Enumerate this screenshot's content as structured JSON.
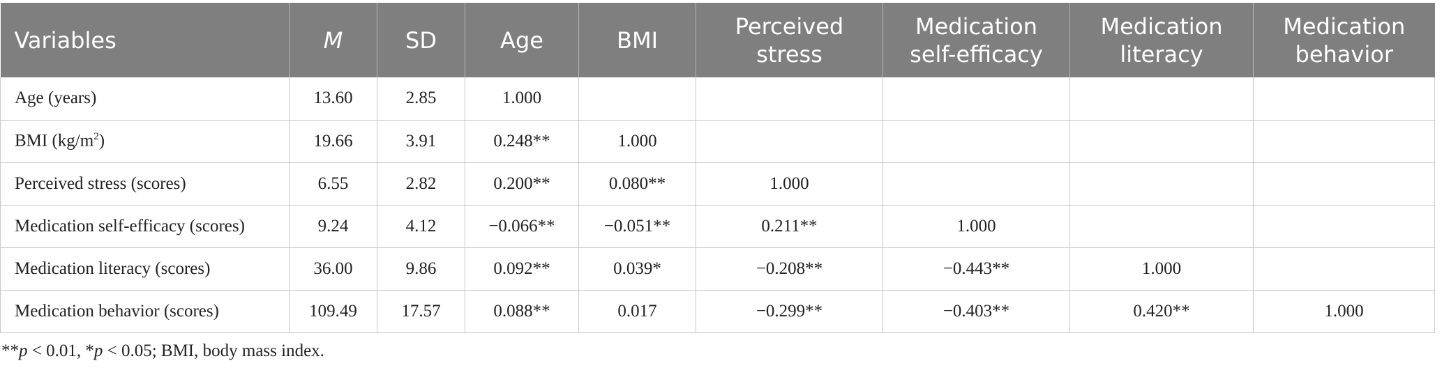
{
  "table": {
    "headers": [
      [
        "Variables"
      ],
      [
        "M"
      ],
      [
        "SD"
      ],
      [
        "Age"
      ],
      [
        "BMI"
      ],
      [
        "Perceived",
        "stress"
      ],
      [
        "Medication",
        "self-efficacy"
      ],
      [
        "Medication",
        "literacy"
      ],
      [
        "Medication",
        "behavior"
      ]
    ],
    "rows": [
      {
        "label": "Age (years)",
        "cells": [
          "13.60",
          "2.85",
          "1.000",
          "",
          "",
          "",
          "",
          ""
        ]
      },
      {
        "label": "BMI (kg/m",
        "sup": "2",
        "label_end": ")",
        "cells": [
          "19.66",
          "3.91",
          "0.248**",
          "1.000",
          "",
          "",
          "",
          ""
        ]
      },
      {
        "label": "Perceived stress (scores)",
        "cells": [
          "6.55",
          "2.82",
          "0.200**",
          "0.080**",
          "1.000",
          "",
          "",
          ""
        ]
      },
      {
        "label": "Medication self-efficacy (scores)",
        "cells": [
          "9.24",
          "4.12",
          "−0.066**",
          "−0.051**",
          "0.211**",
          "1.000",
          "",
          ""
        ]
      },
      {
        "label": "Medication literacy (scores)",
        "cells": [
          "36.00",
          "9.86",
          "0.092**",
          "0.039*",
          "−0.208**",
          "−0.443**",
          "1.000",
          ""
        ]
      },
      {
        "label": "Medication behavior (scores)",
        "cells": [
          "109.49",
          "17.57",
          "0.088**",
          "0.017",
          "−0.299**",
          "−0.403**",
          "0.420**",
          "1.000"
        ]
      }
    ]
  },
  "footnote": {
    "p1_prefix": "**",
    "p1_var": "p",
    "p1_rest": " < 0.01, *",
    "p2_var": "p",
    "p2_rest": " < 0.05; BMI, body mass index."
  }
}
